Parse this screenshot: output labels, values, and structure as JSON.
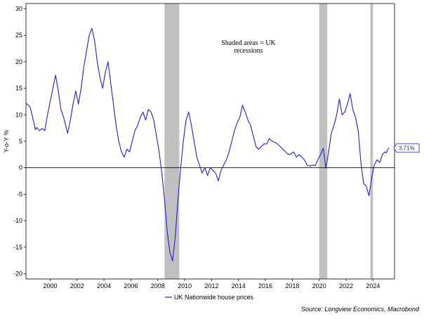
{
  "chart_data": {
    "type": "line",
    "ylabel": "Y-o-Y %",
    "ylim": [
      -21,
      31
    ],
    "yticks": [
      30,
      25,
      20,
      15,
      10,
      5,
      0,
      -5,
      -10,
      -15,
      -20
    ],
    "xlim": [
      1998.2,
      2025.6
    ],
    "xticks": [
      "2000",
      "2002",
      "2004",
      "2006",
      "2008",
      "2010",
      "2012",
      "2014",
      "2016",
      "2018",
      "2020",
      "2022",
      "2024"
    ],
    "annotation": [
      "Shaded areas = UK",
      "recessions"
    ],
    "recessions": [
      [
        2008.5,
        2009.6
      ],
      [
        2020.0,
        2020.6
      ],
      [
        2023.8,
        2024.0
      ]
    ],
    "series": [
      {
        "name": "UK Nationwide house prices",
        "color": "#1f1fd6",
        "last_label": "3.71%",
        "points": [
          [
            1998.2,
            12.2
          ],
          [
            1998.5,
            11.5
          ],
          [
            1998.7,
            9.5
          ],
          [
            1998.9,
            7.2
          ],
          [
            1999.0,
            7.6
          ],
          [
            1999.2,
            7.0
          ],
          [
            1999.4,
            7.4
          ],
          [
            1999.6,
            7.0
          ],
          [
            1999.8,
            10.0
          ],
          [
            2000.0,
            12.5
          ],
          [
            2000.2,
            15.0
          ],
          [
            2000.4,
            17.5
          ],
          [
            2000.6,
            14.5
          ],
          [
            2000.8,
            11.0
          ],
          [
            2001.0,
            9.5
          ],
          [
            2001.2,
            7.5
          ],
          [
            2001.3,
            6.5
          ],
          [
            2001.5,
            9.0
          ],
          [
            2001.7,
            12.0
          ],
          [
            2001.9,
            14.5
          ],
          [
            2002.1,
            12.0
          ],
          [
            2002.3,
            15.0
          ],
          [
            2002.5,
            19.0
          ],
          [
            2002.7,
            22.0
          ],
          [
            2002.9,
            25.0
          ],
          [
            2003.1,
            26.3
          ],
          [
            2003.3,
            24.0
          ],
          [
            2003.5,
            20.0
          ],
          [
            2003.7,
            17.0
          ],
          [
            2003.9,
            15.0
          ],
          [
            2004.1,
            18.0
          ],
          [
            2004.3,
            20.0
          ],
          [
            2004.5,
            16.0
          ],
          [
            2004.7,
            12.0
          ],
          [
            2004.9,
            8.0
          ],
          [
            2005.1,
            5.0
          ],
          [
            2005.3,
            3.0
          ],
          [
            2005.5,
            2.0
          ],
          [
            2005.7,
            3.5
          ],
          [
            2005.9,
            3.0
          ],
          [
            2006.1,
            5.0
          ],
          [
            2006.3,
            7.0
          ],
          [
            2006.5,
            8.0
          ],
          [
            2006.7,
            9.5
          ],
          [
            2006.9,
            10.5
          ],
          [
            2007.1,
            9.0
          ],
          [
            2007.3,
            11.0
          ],
          [
            2007.5,
            10.5
          ],
          [
            2007.7,
            9.0
          ],
          [
            2007.9,
            6.0
          ],
          [
            2008.1,
            3.0
          ],
          [
            2008.3,
            -1.0
          ],
          [
            2008.5,
            -6.0
          ],
          [
            2008.7,
            -12.0
          ],
          [
            2008.9,
            -16.0
          ],
          [
            2009.1,
            -17.6
          ],
          [
            2009.3,
            -13.0
          ],
          [
            2009.5,
            -6.0
          ],
          [
            2009.7,
            0.0
          ],
          [
            2009.9,
            5.0
          ],
          [
            2010.1,
            9.0
          ],
          [
            2010.3,
            10.5
          ],
          [
            2010.5,
            8.0
          ],
          [
            2010.7,
            5.0
          ],
          [
            2010.9,
            2.0
          ],
          [
            2011.1,
            0.5
          ],
          [
            2011.3,
            -1.0
          ],
          [
            2011.5,
            0.0
          ],
          [
            2011.7,
            -1.5
          ],
          [
            2011.9,
            0.0
          ],
          [
            2012.1,
            -0.5
          ],
          [
            2012.3,
            -1.0
          ],
          [
            2012.5,
            -2.5
          ],
          [
            2012.7,
            -0.5
          ],
          [
            2012.9,
            0.5
          ],
          [
            2013.1,
            1.5
          ],
          [
            2013.3,
            3.0
          ],
          [
            2013.5,
            5.0
          ],
          [
            2013.7,
            7.0
          ],
          [
            2013.9,
            8.5
          ],
          [
            2014.1,
            9.5
          ],
          [
            2014.3,
            11.8
          ],
          [
            2014.5,
            10.5
          ],
          [
            2014.7,
            9.0
          ],
          [
            2014.9,
            8.0
          ],
          [
            2015.1,
            6.0
          ],
          [
            2015.3,
            4.0
          ],
          [
            2015.5,
            3.5
          ],
          [
            2015.7,
            4.0
          ],
          [
            2015.9,
            4.5
          ],
          [
            2016.1,
            4.5
          ],
          [
            2016.3,
            5.5
          ],
          [
            2016.5,
            5.0
          ],
          [
            2016.7,
            4.8
          ],
          [
            2016.9,
            4.5
          ],
          [
            2017.1,
            4.0
          ],
          [
            2017.3,
            3.5
          ],
          [
            2017.5,
            3.0
          ],
          [
            2017.7,
            2.5
          ],
          [
            2017.9,
            2.6
          ],
          [
            2018.1,
            3.0
          ],
          [
            2018.3,
            2.0
          ],
          [
            2018.5,
            2.5
          ],
          [
            2018.7,
            2.0
          ],
          [
            2018.9,
            1.5
          ],
          [
            2019.1,
            0.5
          ],
          [
            2019.3,
            0.3
          ],
          [
            2019.5,
            0.5
          ],
          [
            2019.7,
            0.4
          ],
          [
            2019.9,
            1.5
          ],
          [
            2020.1,
            2.5
          ],
          [
            2020.3,
            3.7
          ],
          [
            2020.5,
            -0.1
          ],
          [
            2020.7,
            3.0
          ],
          [
            2020.9,
            6.5
          ],
          [
            2021.1,
            8.0
          ],
          [
            2021.3,
            10.0
          ],
          [
            2021.5,
            13.0
          ],
          [
            2021.7,
            10.0
          ],
          [
            2021.9,
            10.5
          ],
          [
            2022.1,
            12.0
          ],
          [
            2022.3,
            14.0
          ],
          [
            2022.5,
            11.0
          ],
          [
            2022.7,
            9.5
          ],
          [
            2022.9,
            7.0
          ],
          [
            2023.1,
            1.0
          ],
          [
            2023.3,
            -3.0
          ],
          [
            2023.5,
            -3.5
          ],
          [
            2023.7,
            -5.3
          ],
          [
            2023.9,
            -2.0
          ],
          [
            2024.1,
            0.5
          ],
          [
            2024.3,
            1.5
          ],
          [
            2024.5,
            1.0
          ],
          [
            2024.7,
            2.5
          ],
          [
            2024.9,
            3.0
          ],
          [
            2025.0,
            2.8
          ],
          [
            2025.1,
            3.5
          ],
          [
            2025.2,
            3.71
          ]
        ]
      }
    ],
    "legend": {
      "placement": "bottom",
      "entry": "UK Nationwide house prices"
    },
    "source": "Source: Longview Economics, Macrobond",
    "grid": false
  }
}
